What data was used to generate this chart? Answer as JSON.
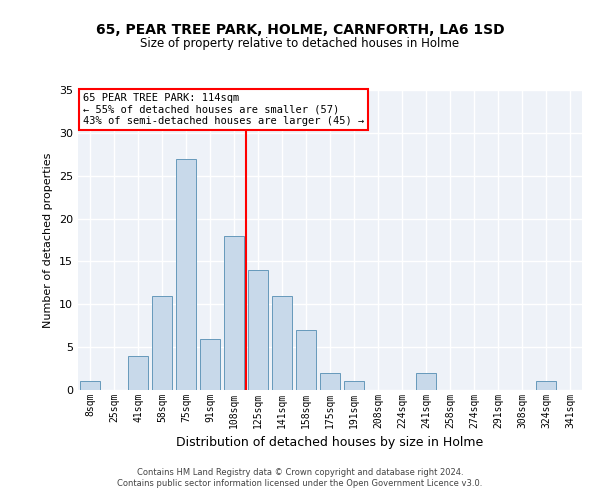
{
  "title1": "65, PEAR TREE PARK, HOLME, CARNFORTH, LA6 1SD",
  "title2": "Size of property relative to detached houses in Holme",
  "xlabel": "Distribution of detached houses by size in Holme",
  "ylabel": "Number of detached properties",
  "bin_labels": [
    "8sqm",
    "25sqm",
    "41sqm",
    "58sqm",
    "75sqm",
    "91sqm",
    "108sqm",
    "125sqm",
    "141sqm",
    "158sqm",
    "175sqm",
    "191sqm",
    "208sqm",
    "224sqm",
    "241sqm",
    "258sqm",
    "274sqm",
    "291sqm",
    "308sqm",
    "324sqm",
    "341sqm"
  ],
  "bar_heights": [
    1,
    0,
    4,
    11,
    27,
    6,
    18,
    14,
    11,
    7,
    2,
    1,
    0,
    0,
    2,
    0,
    0,
    0,
    0,
    1,
    0
  ],
  "bar_color": "#c8d9ea",
  "bar_edgecolor": "#6699bb",
  "bg_color": "#eef2f8",
  "grid_color": "#ffffff",
  "redline_label": "65 PEAR TREE PARK: 114sqm",
  "redline_line1": "← 55% of detached houses are smaller (57)",
  "redline_line2": "43% of semi-detached houses are larger (45) →",
  "ylim": [
    0,
    35
  ],
  "yticks": [
    0,
    5,
    10,
    15,
    20,
    25,
    30,
    35
  ],
  "footer1": "Contains HM Land Registry data © Crown copyright and database right 2024.",
  "footer2": "Contains public sector information licensed under the Open Government Licence v3.0."
}
